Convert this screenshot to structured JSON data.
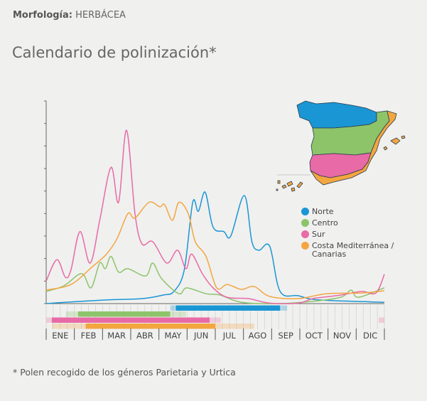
{
  "header": {
    "morphology_label": "Morfología:",
    "morphology_value": "HERBÁCEA",
    "title": "Calendario de polinización*"
  },
  "footnote": "*  Polen recogido de los géneros Parietaria y Urtica",
  "chart_data": {
    "type": "line",
    "title": "Calendario de polinización*",
    "xlabel": "",
    "ylabel": "",
    "x_unit": "months (0 = start of ENE, 12 = end of DIC)",
    "xlim": [
      0,
      12
    ],
    "ylim": [
      0,
      9
    ],
    "y_tick_labels_shown": false,
    "categories": [
      "ENE",
      "FEB",
      "MAR",
      "ABR",
      "MAY",
      "JUN",
      "JUL",
      "AGO",
      "SEP",
      "OCT",
      "NOV",
      "DIC"
    ],
    "legend_position": "right",
    "series": [
      {
        "name": "Norte",
        "color": "#1a96d4",
        "x": [
          0,
          0.6,
          2.1,
          3.4,
          4.15,
          4.53,
          4.9,
          5.2,
          5.4,
          5.64,
          5.92,
          6.3,
          6.55,
          7.03,
          7.3,
          7.55,
          7.93,
          8.3,
          8.94,
          9.7,
          12
        ],
        "y": [
          0,
          0.05,
          0.16,
          0.22,
          0.38,
          0.54,
          1.5,
          4.5,
          4.1,
          4.95,
          3.4,
          3.2,
          3.0,
          4.8,
          2.75,
          2.37,
          2.55,
          0.54,
          0.35,
          0.16,
          0.06
        ]
      },
      {
        "name": "Centro",
        "color": "#8dc46a",
        "x": [
          0,
          0.63,
          1.26,
          1.59,
          1.9,
          2.1,
          2.3,
          2.57,
          2.9,
          3.53,
          3.78,
          4.1,
          4.71,
          4.99,
          5.67,
          6.17,
          6.93,
          8.19,
          9.45,
          10.45,
          10.82,
          11.08,
          12
        ],
        "y": [
          0.54,
          0.79,
          1.33,
          0.7,
          1.8,
          1.55,
          2.1,
          1.4,
          1.55,
          1.23,
          1.8,
          1.1,
          0.44,
          0.7,
          0.44,
          0.38,
          0.06,
          0,
          0.1,
          0.28,
          0.6,
          0.28,
          0.7
        ]
      },
      {
        "name": "Sur",
        "color": "#e86aa6",
        "x": [
          0,
          0.38,
          0.68,
          0.88,
          1.2,
          1.56,
          1.9,
          2.3,
          2.57,
          2.85,
          3.15,
          3.4,
          3.78,
          4.28,
          4.66,
          4.96,
          5.16,
          5.54,
          5.92,
          6.42,
          7.18,
          7.93,
          8.94,
          9.45,
          9.82,
          10.45,
          11.2,
          11.7,
          12
        ],
        "y": [
          1.0,
          1.95,
          1.17,
          1.5,
          3.2,
          1.8,
          3.7,
          6.05,
          4.5,
          7.7,
          4.0,
          2.65,
          2.75,
          1.8,
          2.37,
          1.55,
          2.2,
          1.33,
          0.7,
          0.28,
          0.22,
          0.02,
          0.02,
          0.22,
          0.28,
          0.38,
          0.54,
          0.47,
          1.3
        ]
      },
      {
        "name": "Costa Mediterránea / Canarias",
        "color": "#f3a640",
        "x": [
          0,
          0.88,
          1.64,
          2.14,
          2.52,
          2.9,
          3.15,
          3.65,
          4.03,
          4.2,
          4.48,
          4.71,
          5.04,
          5.29,
          5.67,
          6.05,
          6.42,
          6.93,
          7.38,
          7.93,
          8.94,
          9.95,
          11.2,
          12
        ],
        "y": [
          0.6,
          0.85,
          1.64,
          2.2,
          2.9,
          4.0,
          3.8,
          4.5,
          4.3,
          4.4,
          3.7,
          4.5,
          4.0,
          2.75,
          2.1,
          0.7,
          0.85,
          0.63,
          0.76,
          0.32,
          0.22,
          0.44,
          0.47,
          0.57
        ]
      }
    ],
    "calendar_bars": [
      {
        "series": "Norte",
        "light": [
          [
            4.4,
            4.6
          ],
          [
            8.3,
            8.55
          ]
        ],
        "dark": [
          [
            4.6,
            8.3
          ]
        ]
      },
      {
        "series": "Centro",
        "light": [
          [
            0.7,
            1.13
          ],
          [
            4.4,
            4.96
          ]
        ],
        "dark": [
          [
            1.13,
            4.4
          ]
        ]
      },
      {
        "series": "Sur",
        "light": [
          [
            0,
            0.2
          ],
          [
            5.8,
            6.2
          ],
          [
            11.8,
            12
          ]
        ],
        "dark": [
          [
            0.2,
            5.8
          ]
        ]
      },
      {
        "series": "Costa Mediterránea / Canarias",
        "light": [
          [
            0.2,
            1.4
          ],
          [
            6.0,
            7.38
          ]
        ],
        "dark": [
          [
            1.4,
            6.0
          ]
        ]
      }
    ]
  },
  "legend": [
    {
      "label": "Norte",
      "color": "#1a96d4"
    },
    {
      "label": "Centro",
      "color": "#8dc46a"
    },
    {
      "label": "Sur",
      "color": "#e86aa6"
    },
    {
      "label": "Costa Mediterránea / Canarias",
      "color": "#f3a640"
    }
  ]
}
